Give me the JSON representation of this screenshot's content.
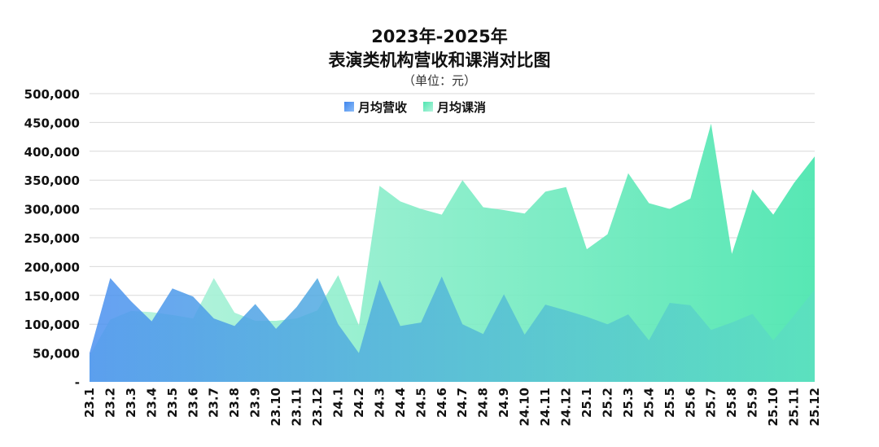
{
  "chart_data": {
    "type": "area",
    "title_line1": "2023年-2025年",
    "title_line2": "表演类机构营收和课消对比图",
    "subtitle": "（单位：元）",
    "ylim": [
      0,
      500000
    ],
    "y_ticks": [
      "-",
      "50,000",
      "100,000",
      "150,000",
      "200,000",
      "250,000",
      "300,000",
      "350,000",
      "400,000",
      "450,000",
      "500,000"
    ],
    "grid": true,
    "legend_position": "top-center",
    "categories": [
      "23.1",
      "23.2",
      "23.3",
      "23.4",
      "23.5",
      "23.6",
      "23.7",
      "23.8",
      "23.9",
      "23.10",
      "23.11",
      "23.12",
      "24.1",
      "24.2",
      "24.3",
      "24.4",
      "24.5",
      "24.6",
      "24.7",
      "24.8",
      "24.9",
      "24.10",
      "24.11",
      "24.12",
      "25.1",
      "25.2",
      "25.3",
      "25.4",
      "25.5",
      "25.6",
      "25.7",
      "25.8",
      "25.9",
      "25.10",
      "25.11",
      "25.12"
    ],
    "series": [
      {
        "name": "月均营收",
        "color_start": "#4a90f0",
        "color_end": "#5ce0c0",
        "values": [
          50000,
          180000,
          140000,
          105000,
          162000,
          148000,
          110000,
          97000,
          135000,
          92000,
          130000,
          180000,
          100000,
          50000,
          177000,
          97000,
          103000,
          183000,
          100000,
          83000,
          152000,
          82000,
          134000,
          124000,
          113000,
          100000,
          117000,
          72000,
          137000,
          133000,
          90000,
          103000,
          118000,
          72000,
          115000,
          160000
        ]
      },
      {
        "name": "月均课消",
        "color_start": "#b6f3dd",
        "color_end": "#4ee6b0",
        "values": [
          45000,
          108000,
          123000,
          121000,
          116000,
          110000,
          180000,
          120000,
          106000,
          106000,
          110000,
          124000,
          185000,
          98000,
          340000,
          313000,
          300000,
          290000,
          350000,
          303000,
          298000,
          292000,
          330000,
          338000,
          230000,
          256000,
          362000,
          310000,
          300000,
          318000,
          448000,
          222000,
          334000,
          290000,
          345000,
          391000
        ]
      }
    ]
  }
}
